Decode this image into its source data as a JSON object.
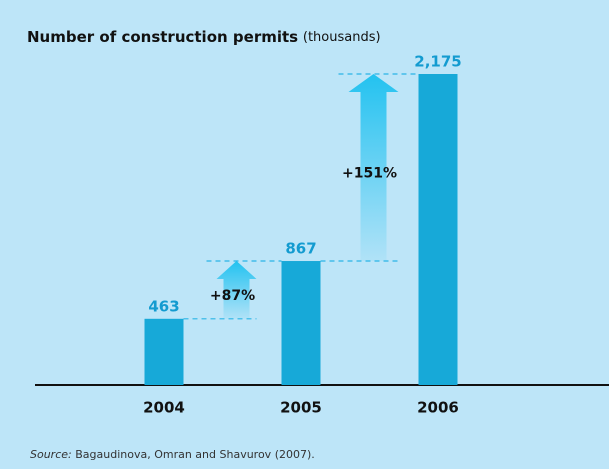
{
  "chart_data": {
    "type": "bar",
    "title": "Number of construction permits",
    "title_unit": "(thousands)",
    "categories": [
      "2004",
      "2005",
      "2006"
    ],
    "values": [
      463,
      867,
      2175
    ],
    "value_labels": [
      "463",
      "867",
      "2,175"
    ],
    "color": "#17a9d8",
    "annotations": [
      "+87%",
      "+151%"
    ],
    "source_label": "Source:",
    "source": "Bagaudinova, Omran and Shavurov (2007)."
  }
}
